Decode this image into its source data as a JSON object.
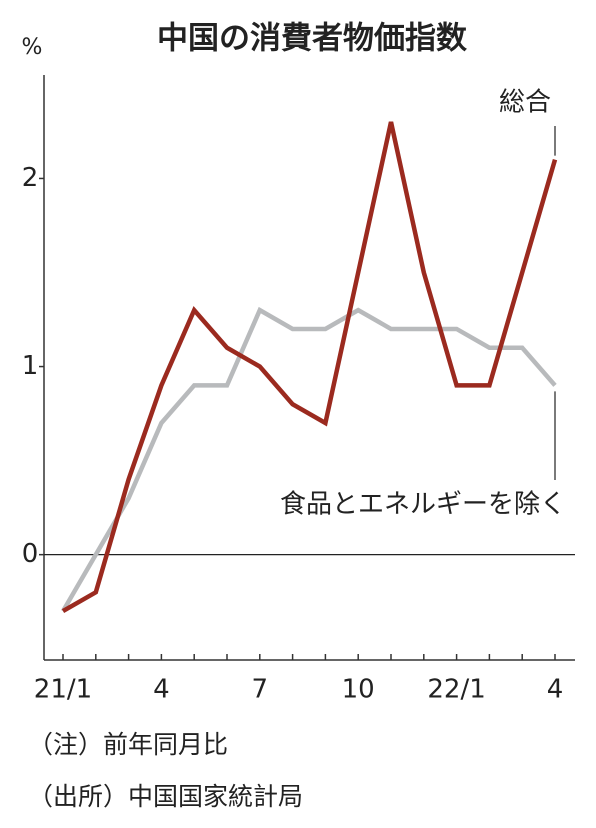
{
  "chart_data": {
    "type": "line",
    "title": "中国の消費者物価指数",
    "y_unit": "%",
    "categories": [
      "21/1",
      null,
      null,
      "4",
      null,
      null,
      "7",
      null,
      null,
      "10",
      null,
      null,
      "22/1",
      null,
      null,
      "4"
    ],
    "series": [
      {
        "name": "総合",
        "color": "#9b2a1f",
        "values": [
          -0.3,
          -0.2,
          0.4,
          0.9,
          1.3,
          1.1,
          1.0,
          0.8,
          0.7,
          1.5,
          2.3,
          1.5,
          0.9,
          0.9,
          1.5,
          2.1
        ]
      },
      {
        "name": "食品とエネルギーを除く",
        "color": "#b8babc",
        "values": [
          -0.3,
          0.0,
          0.3,
          0.7,
          0.9,
          0.9,
          1.3,
          1.2,
          1.2,
          1.3,
          1.2,
          1.2,
          1.2,
          1.1,
          1.1,
          0.9
        ]
      }
    ],
    "ylim": [
      -0.56,
      2.55
    ],
    "yticks": [
      0,
      1,
      2
    ],
    "notes": [
      "（注）前年同月比",
      "（出所）中国国家統計局"
    ]
  }
}
